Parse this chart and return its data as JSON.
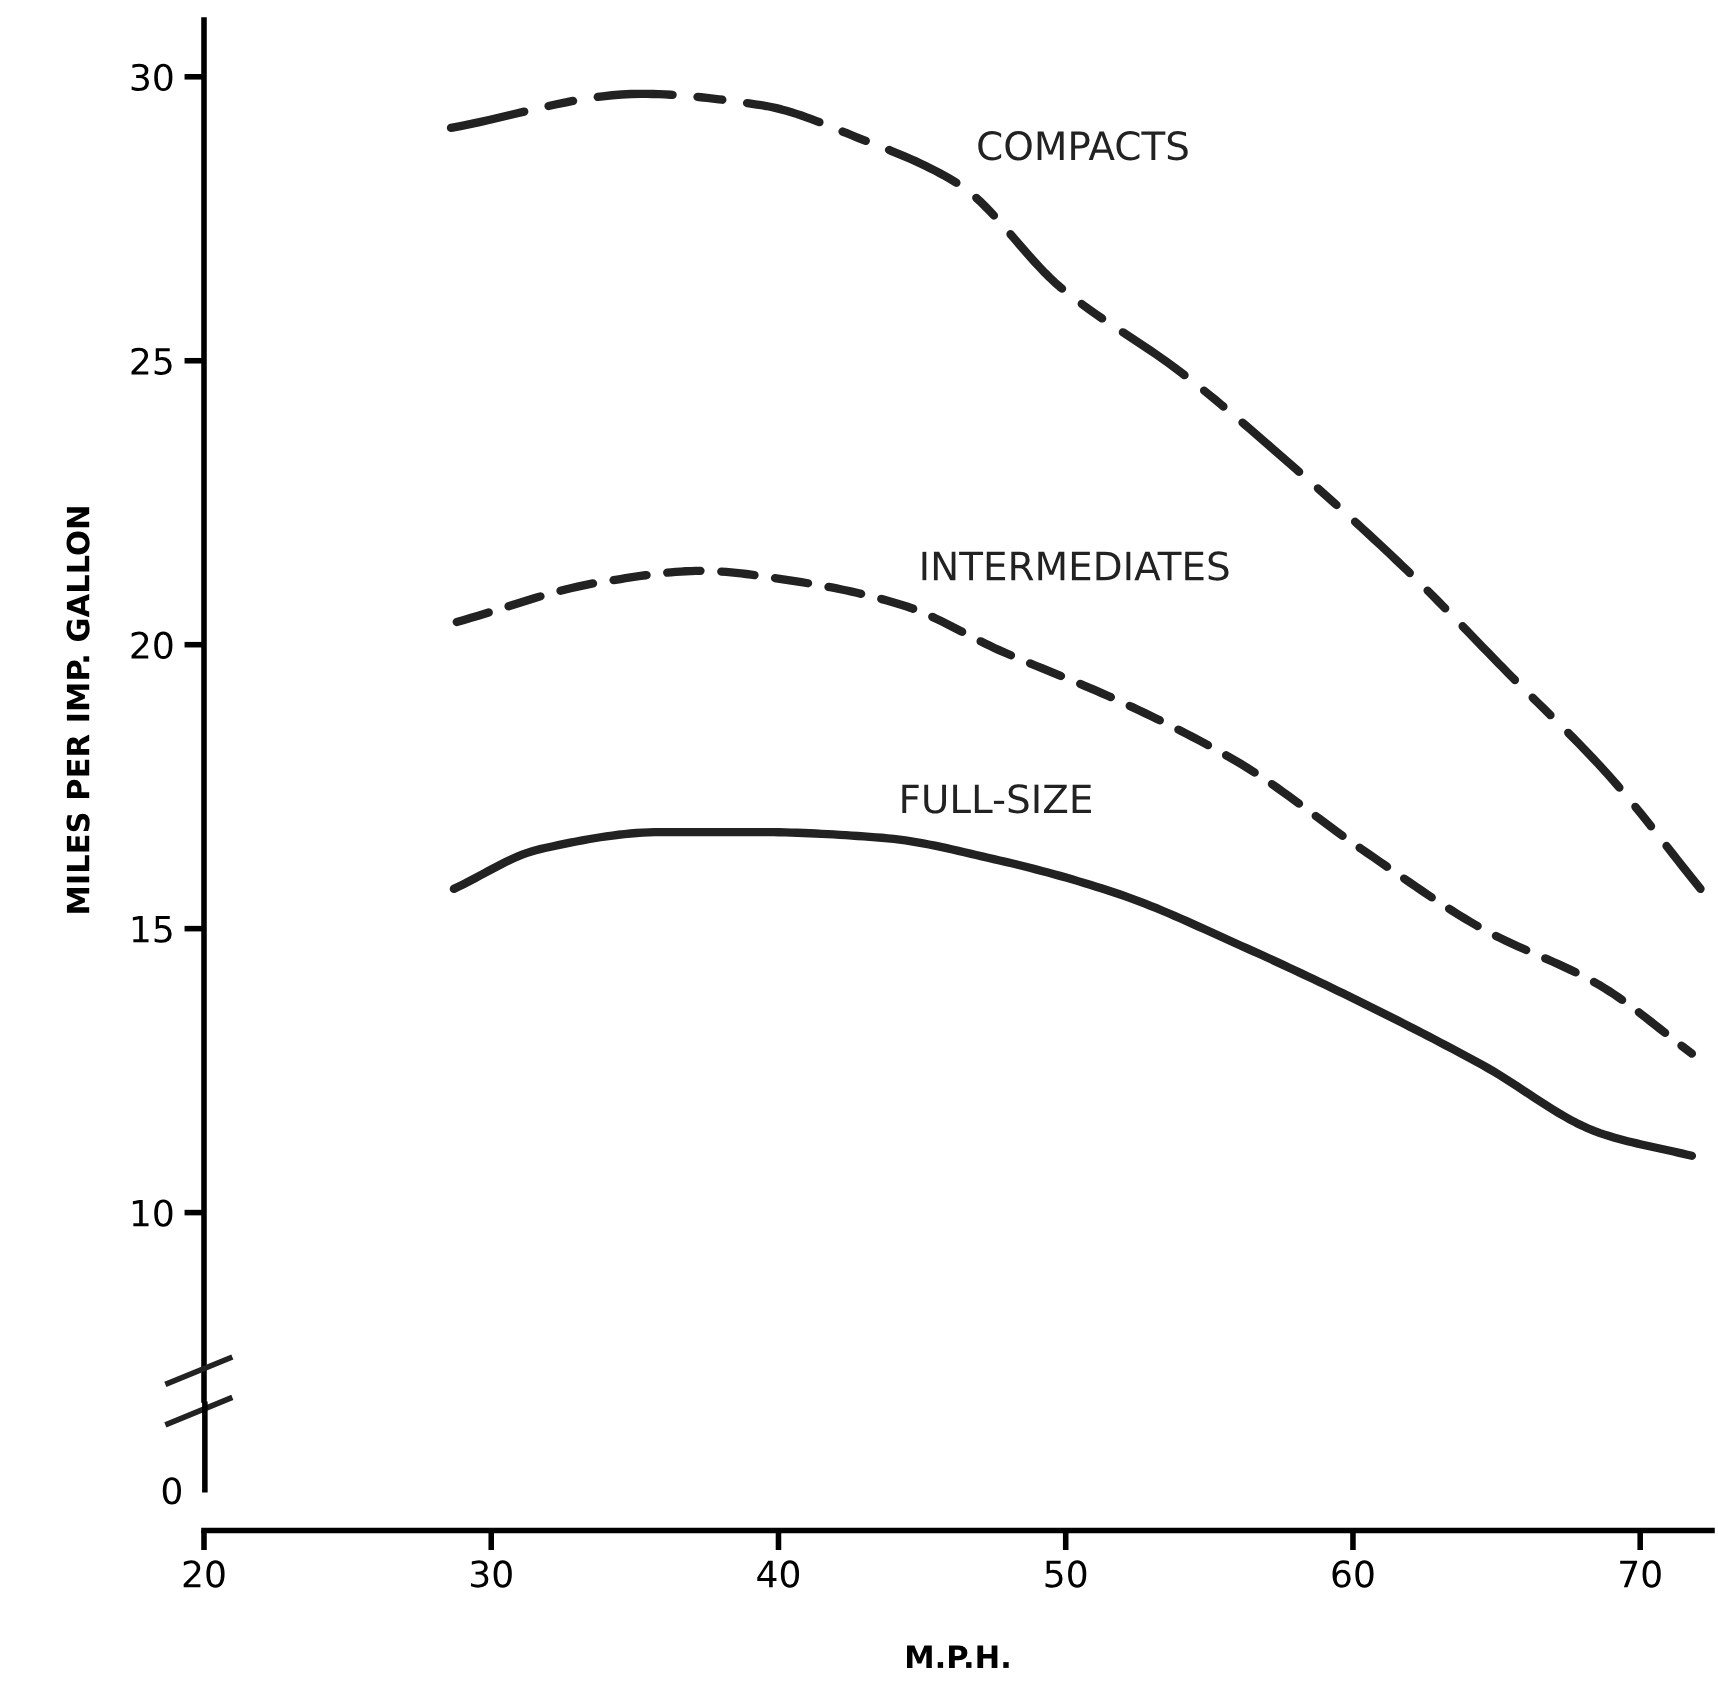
{
  "chart_data": {
    "type": "line",
    "ylabel": "MILES PER IMP. GALLON",
    "xlabel": "M.P.H.",
    "xlim": [
      20,
      72.5
    ],
    "xticks": [
      20,
      30,
      40,
      50,
      60,
      70
    ],
    "ylim": [
      6.7,
      31
    ],
    "yticks": [
      10,
      15,
      20,
      25,
      30
    ],
    "grid": false,
    "legend": false,
    "marker": "none",
    "annotations": [
      "0"
    ],
    "series": [
      {
        "name": "COMPACTS",
        "color": "#222222",
        "line_style": "dashdot",
        "x": [
          28.6,
          35.2,
          39.4,
          42.9,
          46.3,
          49.8,
          54.0,
          58.0,
          61.9,
          65.4,
          68.9,
          72.1
        ],
        "values": [
          29.1,
          29.7,
          29.5,
          28.9,
          28.1,
          26.3,
          24.8,
          23.1,
          21.3,
          19.5,
          17.7,
          15.7
        ]
      },
      {
        "name": "INTERMEDIATES",
        "color": "#222222",
        "line_style": "dashed",
        "x": [
          28.8,
          33.8,
          37.3,
          40.8,
          44.3,
          47.7,
          51.9,
          56.1,
          60.3,
          64.5,
          68.6,
          71.8
        ],
        "values": [
          20.4,
          21.1,
          21.3,
          21.1,
          20.7,
          19.9,
          19.0,
          17.9,
          16.4,
          15.0,
          14.0,
          12.8
        ]
      },
      {
        "name": "FULL-SIZE",
        "color": "#222222",
        "line_style": "solid",
        "x": [
          28.7,
          31.7,
          35.9,
          39.4,
          43.6,
          47.7,
          51.9,
          56.1,
          60.3,
          64.5,
          68.6,
          71.8
        ],
        "values": [
          15.7,
          16.4,
          16.7,
          16.7,
          16.6,
          16.2,
          15.6,
          14.7,
          13.7,
          12.6,
          11.4,
          11.0
        ]
      }
    ]
  }
}
